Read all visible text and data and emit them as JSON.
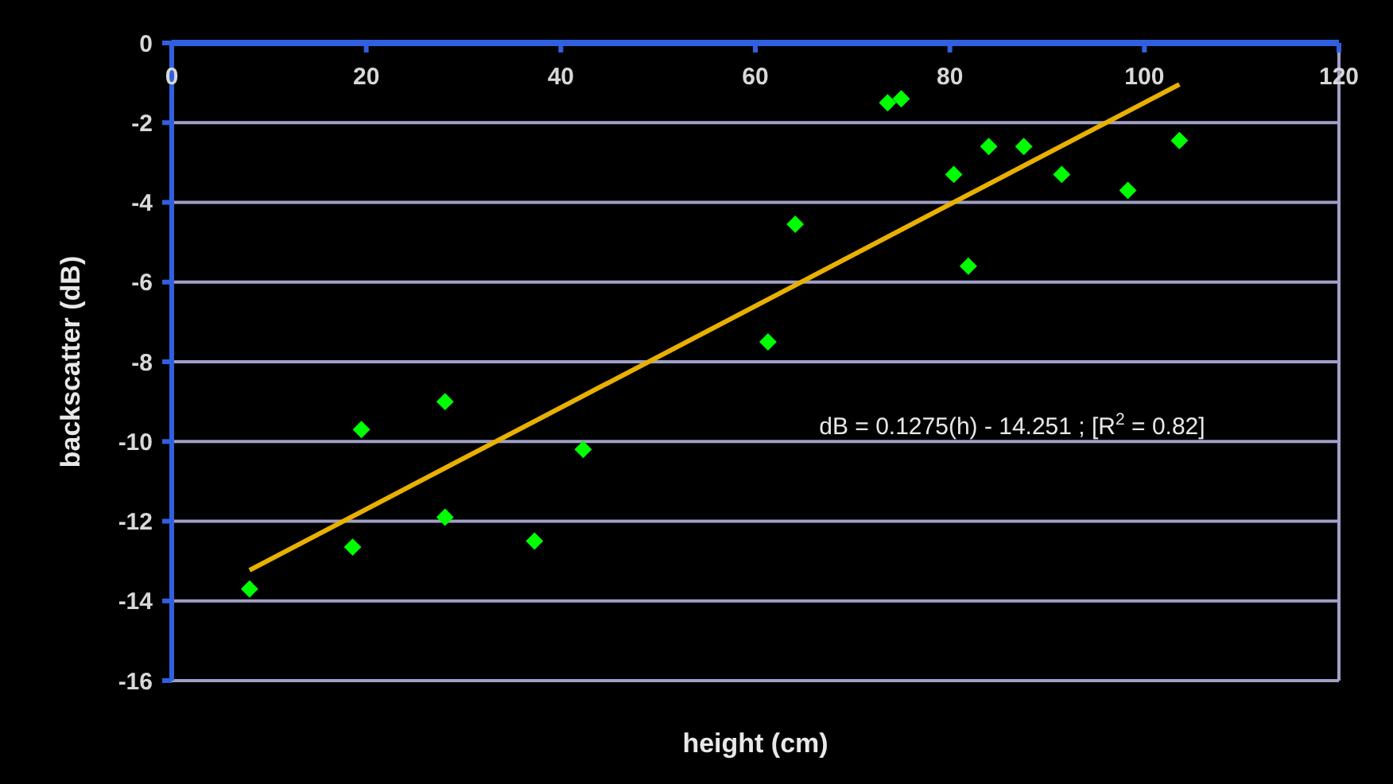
{
  "chart_data": {
    "type": "scatter",
    "xlabel": "height (cm)",
    "ylabel": "backscatter (dB)",
    "xlim": [
      0,
      120
    ],
    "ylim": [
      -16,
      0
    ],
    "xticks": [
      0,
      20,
      40,
      60,
      80,
      100,
      120
    ],
    "yticks": [
      -16,
      -14,
      -12,
      -10,
      -8,
      -6,
      -4,
      -2,
      0
    ],
    "grid": "y",
    "series": [
      {
        "color": "#00ff00",
        "marker": "diamond",
        "x": [
          8,
          18.6,
          19.5,
          28.1,
          28.1,
          37.3,
          42.3,
          61.3,
          64.1,
          73.6,
          75,
          80.4,
          81.9,
          84,
          87.6,
          91.5,
          98.3,
          103.6
        ],
        "values": [
          -13.7,
          -12.65,
          -9.7,
          -9,
          -11.9,
          -12.5,
          -10.2,
          -7.5,
          -4.55,
          -1.5,
          -1.4,
          -3.3,
          -5.6,
          -2.6,
          -2.6,
          -3.3,
          -3.7,
          -2.45
        ]
      },
      {
        "type": "line",
        "color": "#e8b000",
        "marker": "none",
        "x": [
          8,
          103.6
        ],
        "values": [
          -13.23,
          -1.04
        ]
      }
    ],
    "annotations": [
      "dB = 0.1275(h) - 14.251 ;  [R$^{2}$ = 0.82]"
    ]
  }
}
